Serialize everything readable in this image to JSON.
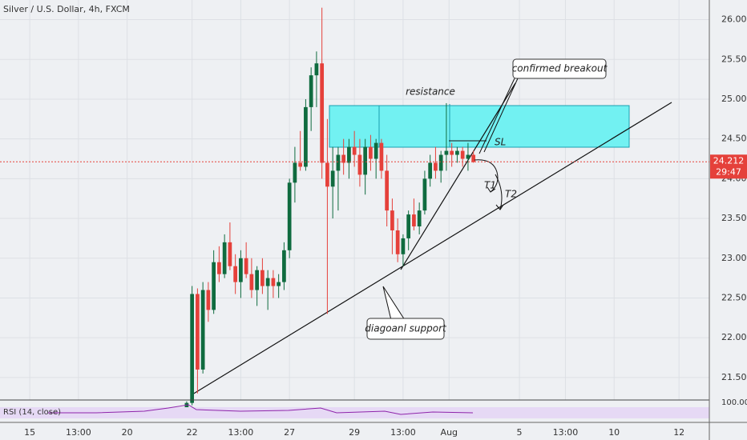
{
  "chart_data": {
    "type": "candlestick",
    "title": "Silver / U.S. Dollar, 4h, FXCM",
    "x": [
      0,
      1,
      2,
      3,
      4,
      5,
      6,
      7,
      8,
      9,
      10,
      11,
      12,
      13,
      14,
      15,
      16,
      17,
      18,
      19,
      20,
      21,
      22,
      23,
      24,
      25,
      26,
      27,
      28,
      29,
      30,
      31,
      32,
      33,
      34,
      35,
      36,
      37,
      38,
      39,
      40,
      41,
      42,
      43,
      44,
      45,
      46,
      47,
      48,
      49,
      50,
      51,
      52,
      53
    ],
    "open": [
      21.1,
      21.18,
      22.55,
      21.6,
      22.6,
      22.35,
      22.95,
      22.8,
      23.2,
      22.9,
      22.7,
      23.0,
      22.8,
      22.6,
      22.85,
      22.65,
      22.75,
      22.65,
      22.7,
      23.1,
      23.95,
      24.2,
      24.15,
      24.9,
      25.3,
      25.45,
      24.2,
      23.9,
      24.1,
      24.3,
      24.2,
      24.4,
      24.3,
      24.05,
      24.4,
      24.25,
      24.45,
      24.1,
      23.6,
      23.35,
      23.05,
      23.25,
      23.55,
      23.4,
      23.6,
      24.0,
      24.2,
      24.1,
      24.3,
      24.35,
      24.3,
      24.35,
      24.25,
      24.3
    ],
    "high": [
      21.2,
      22.65,
      22.62,
      22.7,
      22.7,
      23.1,
      23.15,
      23.3,
      23.45,
      23.05,
      23.1,
      23.2,
      23.0,
      22.9,
      23.0,
      22.85,
      22.85,
      22.8,
      23.2,
      24.0,
      24.4,
      24.6,
      25.0,
      25.4,
      25.6,
      26.15,
      24.75,
      24.4,
      24.4,
      24.5,
      24.5,
      24.6,
      24.5,
      24.5,
      24.55,
      24.5,
      24.5,
      24.3,
      23.75,
      23.5,
      23.3,
      23.6,
      23.75,
      23.7,
      24.1,
      24.3,
      24.4,
      24.35,
      24.95,
      24.45,
      24.4,
      24.4,
      24.45,
      24.35
    ],
    "low": [
      21.05,
      21.15,
      21.3,
      21.55,
      22.2,
      22.3,
      22.7,
      22.75,
      22.85,
      22.55,
      22.5,
      22.75,
      22.5,
      22.4,
      22.55,
      22.35,
      22.5,
      22.5,
      22.6,
      23.0,
      23.7,
      24.1,
      24.1,
      24.6,
      24.9,
      24.0,
      22.3,
      23.5,
      23.6,
      24.05,
      24.0,
      24.15,
      23.9,
      23.8,
      24.1,
      24.0,
      24.0,
      23.4,
      23.05,
      22.95,
      22.9,
      23.1,
      23.35,
      23.3,
      23.55,
      23.9,
      24.0,
      23.95,
      24.1,
      24.15,
      24.2,
      24.15,
      24.1,
      24.2
    ],
    "close": [
      21.18,
      22.55,
      21.6,
      22.6,
      22.35,
      22.95,
      22.8,
      23.2,
      22.9,
      22.7,
      23.0,
      22.8,
      22.6,
      22.85,
      22.65,
      22.75,
      22.65,
      22.7,
      23.1,
      23.95,
      24.2,
      24.15,
      24.9,
      25.3,
      25.45,
      24.2,
      23.9,
      24.1,
      24.3,
      24.2,
      24.4,
      24.3,
      24.05,
      24.4,
      24.25,
      24.45,
      24.1,
      23.6,
      23.35,
      23.05,
      23.25,
      23.55,
      23.4,
      23.6,
      24.0,
      24.2,
      24.1,
      24.3,
      24.35,
      24.3,
      24.35,
      24.25,
      24.3,
      24.21
    ],
    "up_color": "#0f6b3f",
    "down_color": "#e5403a",
    "xlim": [
      -34.5,
      96.6
    ],
    "xticks": [
      {
        "value": -29,
        "label": "15"
      },
      {
        "value": -20,
        "label": "13:00"
      },
      {
        "value": -11,
        "label": "20"
      },
      {
        "value": 1,
        "label": "22"
      },
      {
        "value": 10,
        "label": "13:00"
      },
      {
        "value": 19,
        "label": "27"
      },
      {
        "value": 31,
        "label": "29"
      },
      {
        "value": 40,
        "label": "13:00"
      },
      {
        "value": 48.5,
        "label": "Aug"
      },
      {
        "value": 61.5,
        "label": "5"
      },
      {
        "value": 70,
        "label": "13:00"
      },
      {
        "value": 79,
        "label": "10"
      },
      {
        "value": 91,
        "label": "12"
      }
    ],
    "ylim": [
      21.217,
      26.247
    ],
    "yticks": [
      {
        "value": 21.5,
        "label": "21.500"
      },
      {
        "value": 22,
        "label": "22.000"
      },
      {
        "value": 22.5,
        "label": "22.500"
      },
      {
        "value": 23,
        "label": "23.000"
      },
      {
        "value": 23.5,
        "label": "23.500"
      },
      {
        "value": 24,
        "label": "24.000"
      },
      {
        "value": 24.5,
        "label": "24.500"
      },
      {
        "value": 25,
        "label": "25.000"
      },
      {
        "value": 25.5,
        "label": "25.500"
      },
      {
        "value": 26,
        "label": "26.000"
      }
    ],
    "last_price": 24.212,
    "countdown": "29:47",
    "annotations": {
      "resistance": "resistance",
      "breakout": "confirmed breakout",
      "sl": "SL",
      "t1": "T1",
      "t2": "T2",
      "support": "diagoanl support"
    },
    "rsi_label": "RSI (14, close)",
    "rsi_tick": "100.00"
  }
}
